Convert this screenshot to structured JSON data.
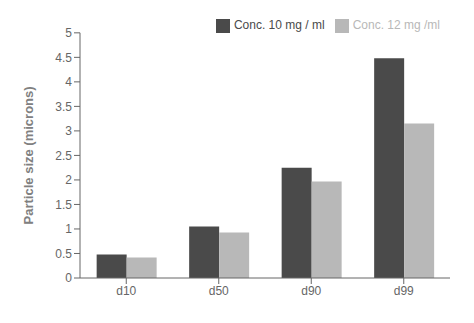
{
  "chart_data": {
    "type": "bar",
    "categories": [
      "d10",
      "d50",
      "d90",
      "d99"
    ],
    "series": [
      {
        "name": "Conc. 10 mg / ml",
        "color": "#4a4a4a",
        "values": [
          0.48,
          1.05,
          2.25,
          4.48
        ]
      },
      {
        "name": "Conc. 12 mg /ml",
        "color": "#b8b8b8",
        "values": [
          0.42,
          0.93,
          1.97,
          3.15
        ]
      }
    ],
    "ylabel": "Particle size (microns)",
    "ylim": [
      0,
      5
    ],
    "yticks": [
      0,
      0.5,
      1.0,
      1.5,
      2.0,
      2.5,
      3.0,
      3.5,
      4.0,
      4.5,
      5.0
    ],
    "grid": false,
    "legend": "upper right"
  }
}
